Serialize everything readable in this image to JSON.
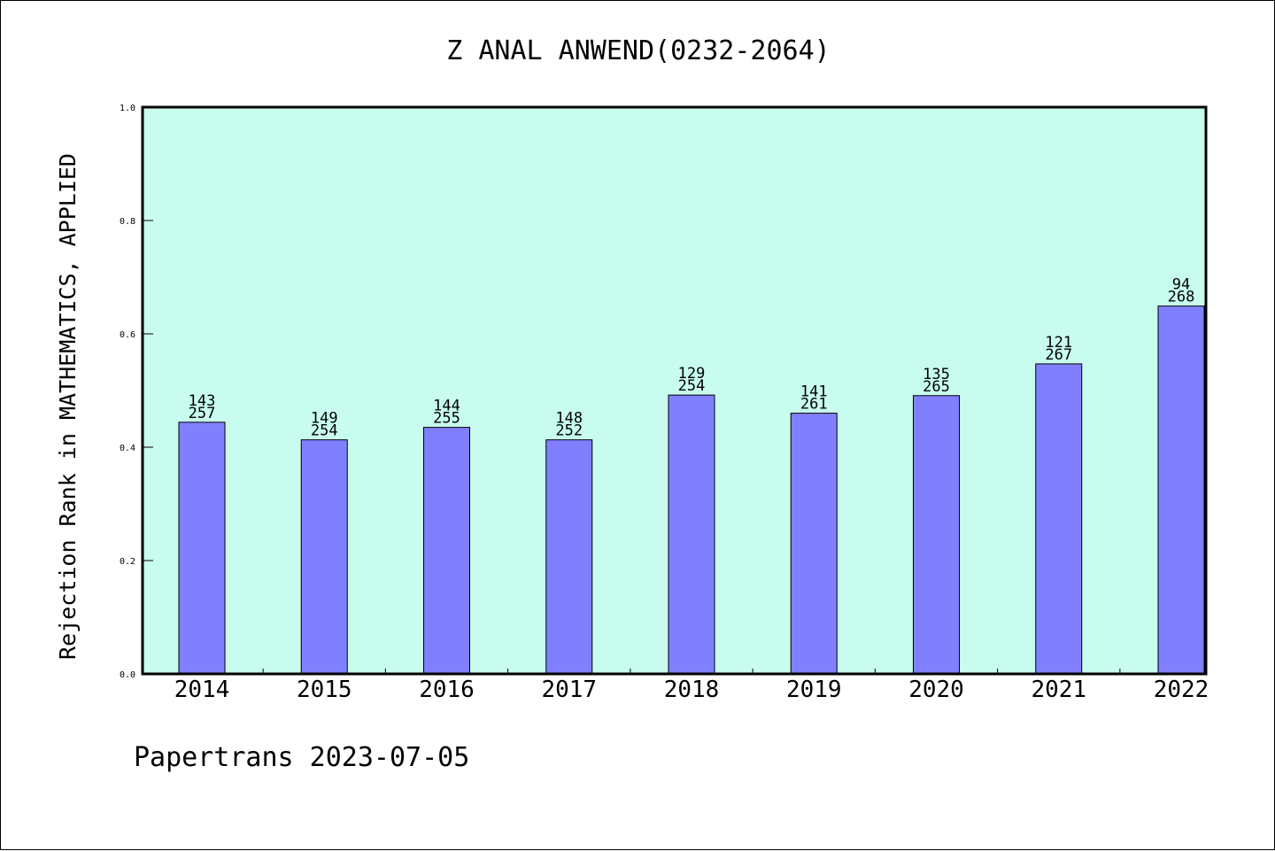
{
  "chart_data": {
    "type": "bar",
    "title": "Z ANAL ANWEND(0232-2064)",
    "ylabel": "Rejection Rank in MATHEMATICS, APPLIED",
    "xlabel": "",
    "ylim": [
      0,
      1.0
    ],
    "yticks": [
      "0.0",
      "0.2",
      "0.4",
      "0.6",
      "0.8",
      "1.0"
    ],
    "grid": false,
    "categories": [
      "2014",
      "2015",
      "2016",
      "2017",
      "2018",
      "2019",
      "2020",
      "2021",
      "2022"
    ],
    "values": [
      0.444,
      0.413,
      0.435,
      0.413,
      0.492,
      0.46,
      0.491,
      0.547,
      0.649
    ],
    "label_top": [
      "143",
      "149",
      "144",
      "148",
      "129",
      "141",
      "135",
      "121",
      "94"
    ],
    "label_bottom": [
      "257",
      "254",
      "255",
      "252",
      "254",
      "261",
      "265",
      "267",
      "268"
    ],
    "colors": {
      "plot_background": "#c8fcee",
      "bar_fill": "#8080ff",
      "bar_stroke": "#000000"
    }
  },
  "footer": "Papertrans 2023-07-05"
}
